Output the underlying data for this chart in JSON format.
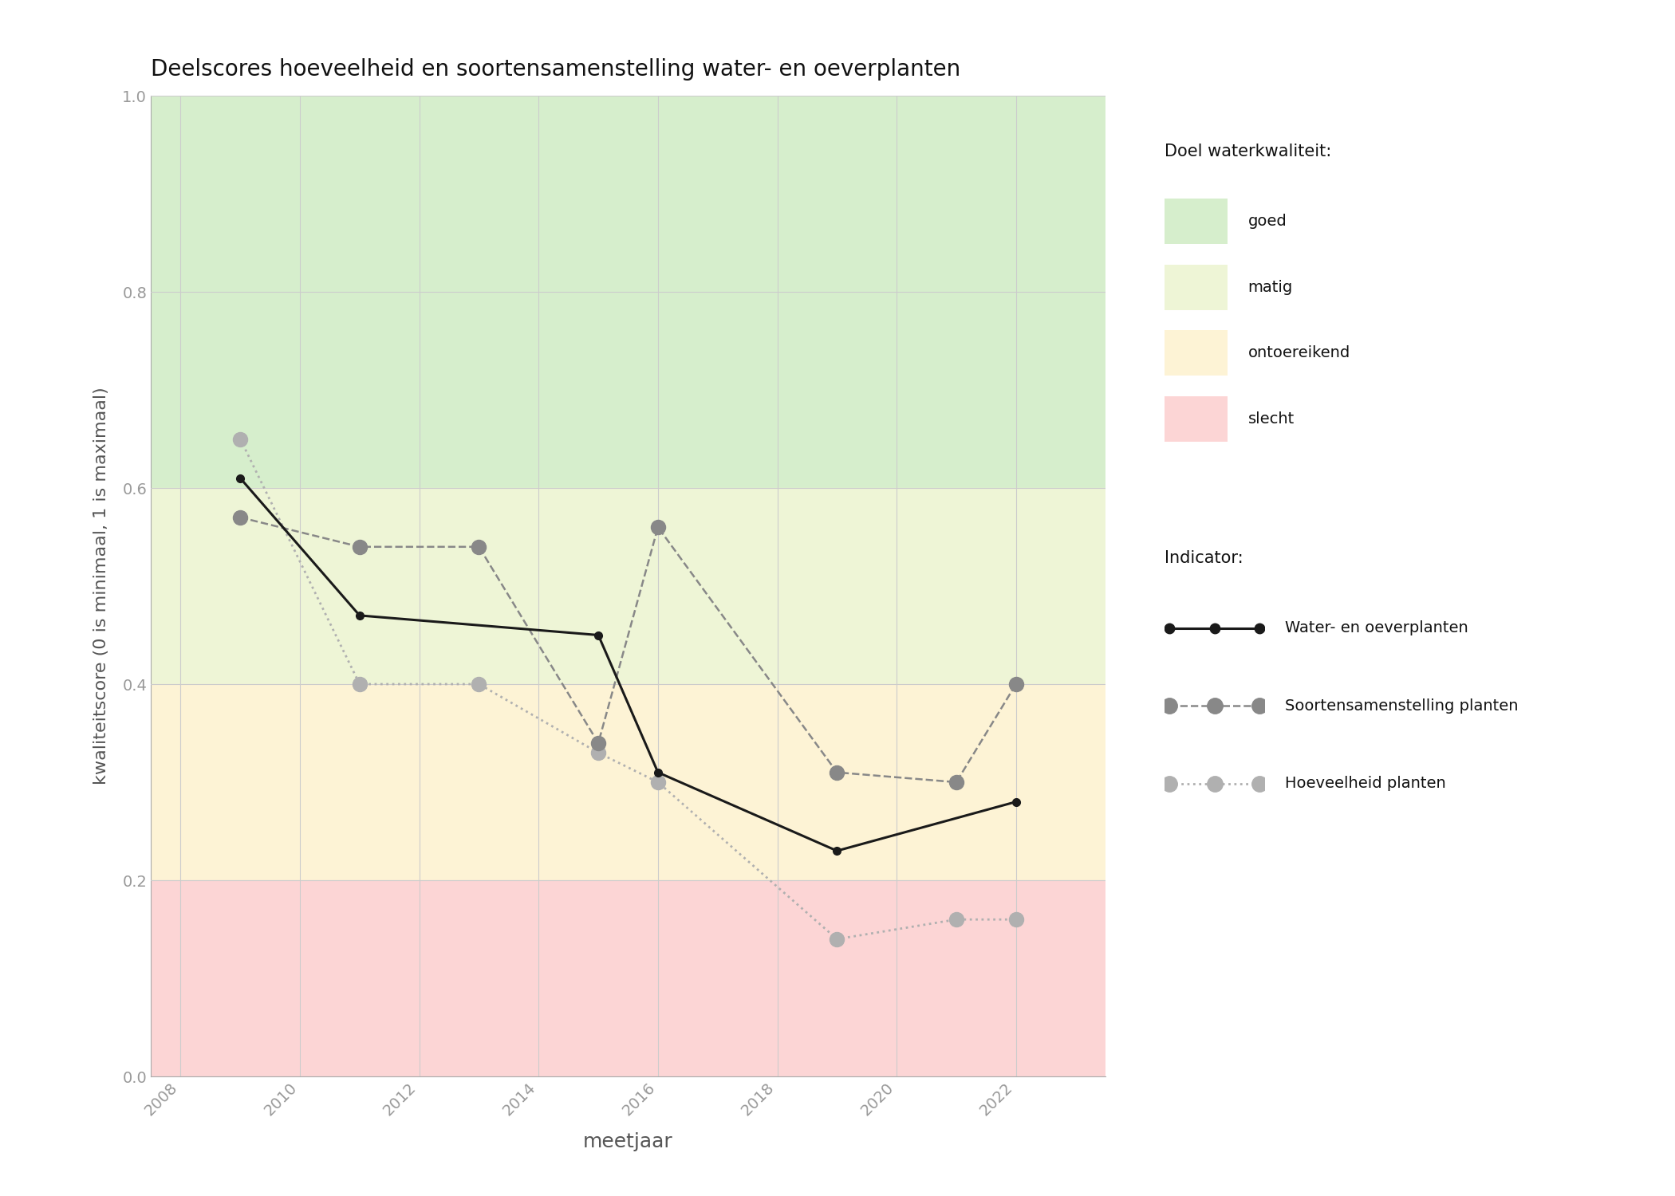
{
  "title": "Deelscores hoeveelheid en soortensamenstelling water- en oeverplanten",
  "xlabel": "meetjaar",
  "ylabel": "kwaliteitscore (0 is minimaal, 1 is maximaal)",
  "xlim": [
    2007.5,
    2023.5
  ],
  "ylim": [
    0.0,
    1.0
  ],
  "xticks": [
    2008,
    2010,
    2012,
    2014,
    2016,
    2018,
    2020,
    2022
  ],
  "yticks": [
    0.0,
    0.2,
    0.4,
    0.6,
    0.8,
    1.0
  ],
  "background_bands": [
    {
      "ymin": 0.6,
      "ymax": 1.0,
      "color": "#d6eecc"
    },
    {
      "ymin": 0.4,
      "ymax": 0.6,
      "color": "#eef5d6"
    },
    {
      "ymin": 0.2,
      "ymax": 0.4,
      "color": "#fdf3d5"
    },
    {
      "ymin": 0.0,
      "ymax": 0.2,
      "color": "#fcd5d5"
    }
  ],
  "series": [
    {
      "name": "Water- en oeverplanten",
      "x": [
        2009,
        2011,
        2015,
        2016,
        2019,
        2022
      ],
      "y": [
        0.61,
        0.47,
        0.45,
        0.31,
        0.23,
        0.28
      ],
      "color": "#1a1a1a",
      "linestyle": "solid",
      "linewidth": 2.2,
      "markersize": 7,
      "marker": "o",
      "zorder": 5
    },
    {
      "name": "Soortensamenstelling planten",
      "x": [
        2009,
        2011,
        2013,
        2015,
        2016,
        2019,
        2021,
        2022
      ],
      "y": [
        0.57,
        0.54,
        0.54,
        0.34,
        0.56,
        0.31,
        0.3,
        0.4
      ],
      "color": "#888888",
      "linestyle": "dashed",
      "linewidth": 1.8,
      "markersize": 13,
      "marker": "o",
      "zorder": 4
    },
    {
      "name": "Hoeveelheid planten",
      "x": [
        2009,
        2011,
        2013,
        2015,
        2016,
        2019,
        2021,
        2022
      ],
      "y": [
        0.65,
        0.4,
        0.4,
        0.33,
        0.3,
        0.14,
        0.16,
        0.16
      ],
      "color": "#b0b0b0",
      "linestyle": "dotted",
      "linewidth": 2.0,
      "markersize": 13,
      "marker": "o",
      "zorder": 3
    }
  ],
  "legend_quality_title": "Doel waterkwaliteit:",
  "legend_indicator_title": "Indicator:",
  "legend_quality_items": [
    {
      "label": "goed",
      "color": "#d6eecc"
    },
    {
      "label": "matig",
      "color": "#eef5d6"
    },
    {
      "label": "ontoereikend",
      "color": "#fdf3d5"
    },
    {
      "label": "slecht",
      "color": "#fcd5d5"
    }
  ],
  "background_color": "#ffffff",
  "grid_color": "#cccccc",
  "tick_label_color": "#999999",
  "axis_label_color": "#555555",
  "title_color": "#111111",
  "figsize": [
    21.0,
    15.0
  ],
  "dpi": 100
}
